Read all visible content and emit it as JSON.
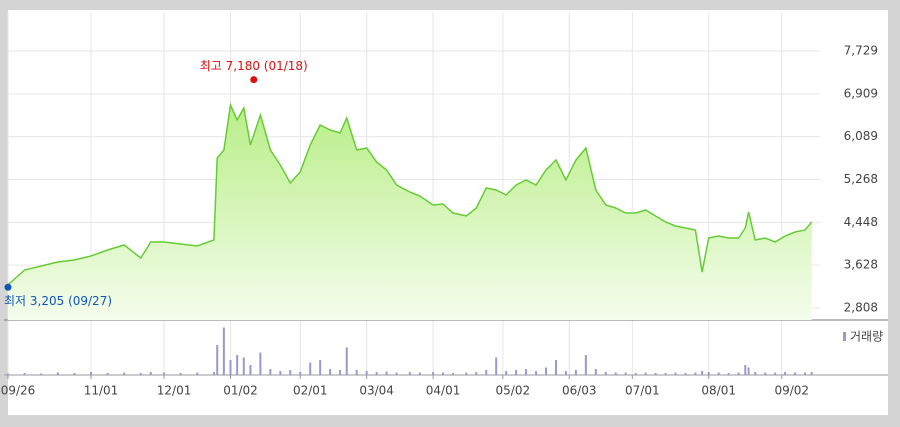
{
  "chart_data": {
    "type": "line",
    "x": [
      0,
      5,
      10,
      15,
      20,
      25,
      30,
      35,
      40,
      43,
      47,
      52,
      57,
      62,
      63,
      65,
      67,
      69,
      71,
      73,
      76,
      79,
      82,
      85,
      88,
      91,
      94,
      97,
      100,
      102,
      105,
      108,
      111,
      114,
      117,
      121,
      124,
      128,
      131,
      134,
      138,
      141,
      144,
      147,
      150,
      153,
      156,
      159,
      162,
      165,
      168,
      171,
      174,
      177,
      180,
      183,
      186,
      189,
      192,
      195,
      198,
      201,
      204,
      207,
      209,
      211,
      214,
      217,
      220,
      222,
      223,
      225,
      228,
      231,
      234,
      237,
      240,
      242
    ],
    "series": [
      {
        "color": "#66cc33",
        "values": [
          3250,
          3535,
          3612,
          3688,
          3727,
          3803,
          3918,
          4014,
          3765,
          4072,
          4072,
          4033,
          3995,
          4110,
          5680,
          5833,
          6695,
          6408,
          6638,
          5929,
          6504,
          5833,
          5546,
          5201,
          5412,
          5929,
          6312,
          6216,
          6159,
          6446,
          5833,
          5871,
          5603,
          5450,
          5163,
          5029,
          4952,
          4780,
          4799,
          4627,
          4569,
          4722,
          5106,
          5067,
          4971,
          5163,
          5259,
          5163,
          5450,
          5642,
          5259,
          5642,
          5871,
          5067,
          4780,
          4722,
          4627,
          4627,
          4684,
          4569,
          4454,
          4378,
          4340,
          4301,
          3497,
          4148,
          4186,
          4148,
          4148,
          4340,
          4646,
          4110,
          4148,
          4072,
          4186,
          4263,
          4301,
          4454
        ]
      }
    ],
    "volume": {
      "name": "거래량",
      "color": "#9999cc",
      "ylim": [
        0,
        100
      ],
      "values": [
        3,
        4,
        3,
        5,
        4,
        6,
        4,
        5,
        4,
        6,
        5,
        4,
        5,
        6,
        60,
        95,
        30,
        40,
        35,
        20,
        45,
        12,
        8,
        10,
        6,
        25,
        30,
        12,
        10,
        55,
        10,
        8,
        6,
        7,
        5,
        6,
        5,
        6,
        5,
        4,
        5,
        6,
        10,
        35,
        8,
        10,
        12,
        8,
        15,
        30,
        8,
        10,
        40,
        12,
        6,
        5,
        5,
        4,
        5,
        4,
        4,
        5,
        4,
        5,
        8,
        6,
        5,
        4,
        5,
        20,
        15,
        6,
        5,
        5,
        6,
        5,
        5,
        6
      ]
    },
    "xlim": [
      0,
      243
    ],
    "xticks": [
      {
        "value": 0,
        "label": "09/26"
      },
      {
        "value": 25,
        "label": "11/01"
      },
      {
        "value": 47,
        "label": "12/01"
      },
      {
        "value": 67,
        "label": "01/02"
      },
      {
        "value": 88,
        "label": "02/01"
      },
      {
        "value": 108,
        "label": "03/04"
      },
      {
        "value": 128,
        "label": "04/01"
      },
      {
        "value": 149,
        "label": "05/02"
      },
      {
        "value": 169,
        "label": "06/03"
      },
      {
        "value": 188,
        "label": "07/01"
      },
      {
        "value": 211,
        "label": "08/01"
      },
      {
        "value": 233,
        "label": "09/02"
      }
    ],
    "ylim": [
      2578,
      8476
    ],
    "yticks": [
      {
        "value": 7729,
        "label": "7,729"
      },
      {
        "value": 6909,
        "label": "6,909"
      },
      {
        "value": 6089,
        "label": "6,089"
      },
      {
        "value": 5268,
        "label": "5,268"
      },
      {
        "value": 4448,
        "label": "4,448"
      },
      {
        "value": 3628,
        "label": "3,628"
      },
      {
        "value": 2808,
        "label": "2,808"
      }
    ],
    "grid": true,
    "high": {
      "label": "최고 7,180 (01/18)",
      "x": 74,
      "value": 7180,
      "color": "#dd1111"
    },
    "low": {
      "label": "최저 3,205 (09/27)",
      "x": 0,
      "value": 3205,
      "color": "#1155bb"
    }
  }
}
